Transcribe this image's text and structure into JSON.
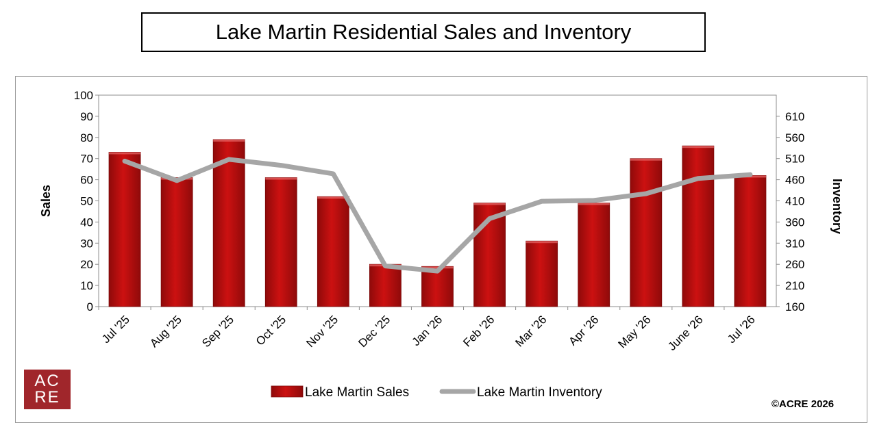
{
  "title": "Lake Martin Residential Sales and Inventory",
  "logo": {
    "line1": "AC",
    "line2": "RE"
  },
  "copyright": "©ACRE 2026",
  "colors": {
    "sales": "#cc1111",
    "sales_dark": "#8f0a0a",
    "inventory": "#a6a6a6"
  },
  "chart_data": {
    "type": "bar",
    "categories": [
      "Jul '25",
      "Aug '25",
      "Sep '25",
      "Oct '25",
      "Nov '25",
      "Dec '25",
      "Jan '26",
      "Feb '26",
      "Mar '26",
      "Apr '26",
      "May '26",
      "June '26",
      "Jul '26"
    ],
    "series": [
      {
        "name": "Lake Martin Sales",
        "type": "bar",
        "axis": "left",
        "values": [
          73,
          61,
          79,
          61,
          52,
          20,
          19,
          49,
          31,
          49,
          70,
          76,
          62
        ]
      },
      {
        "name": "Lake Martin Inventory",
        "type": "line",
        "axis": "right",
        "values": [
          504,
          458,
          508,
          494,
          474,
          256,
          244,
          368,
          409,
          411,
          427,
          463,
          472
        ]
      }
    ],
    "ylabel": "Sales",
    "y2label": "Inventory",
    "ylim": [
      0,
      100
    ],
    "y2lim": [
      160,
      660
    ],
    "yticks": [
      "0",
      "10",
      "20",
      "30",
      "40",
      "50",
      "60",
      "70",
      "80",
      "90",
      "100"
    ],
    "y2ticks": [
      "160",
      "210",
      "260",
      "310",
      "360",
      "410",
      "460",
      "510",
      "560",
      "610"
    ],
    "grid": false,
    "legend_position": "bottom"
  }
}
